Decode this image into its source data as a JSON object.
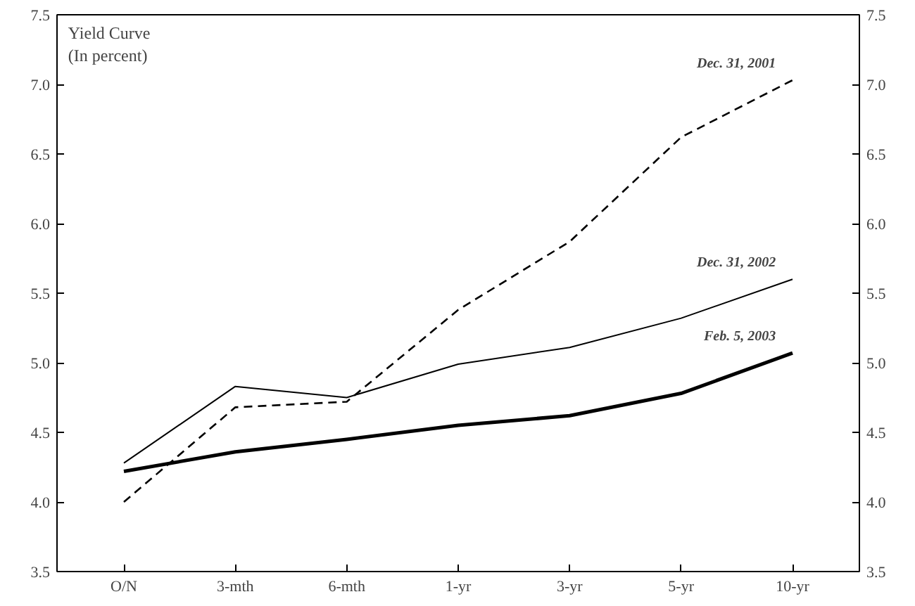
{
  "chart_data": {
    "type": "line",
    "title": "Yield Curve",
    "subtitle": "(In percent)",
    "categories": [
      "O/N",
      "3-mth",
      "6-mth",
      "1-yr",
      "3-yr",
      "5-yr",
      "10-yr"
    ],
    "series": [
      {
        "name": "Dec. 31, 2001",
        "color": "#000000",
        "line_style": "dashed",
        "values": [
          4.0,
          4.68,
          4.72,
          5.38,
          5.87,
          6.62,
          7.03
        ]
      },
      {
        "name": "Dec. 31, 2002",
        "color": "#000000",
        "line_style": "solid",
        "values": [
          4.28,
          4.83,
          4.75,
          4.99,
          5.11,
          5.32,
          5.6
        ]
      },
      {
        "name": "Feb. 5, 2003",
        "color": "#000000",
        "line_style": "solid",
        "values": [
          4.22,
          4.36,
          4.45,
          4.55,
          4.62,
          4.78,
          5.07
        ]
      }
    ],
    "ylim": [
      3.5,
      7.5
    ],
    "yticks": [
      3.5,
      {
        "value": 4,
        "label": "4.0"
      },
      4.5,
      {
        "value": 5,
        "label": "5.0"
      },
      5.5,
      {
        "value": 6,
        "label": "6.0"
      },
      6.5,
      {
        "value": 7,
        "label": "7.0"
      },
      7.5
    ],
    "y2lim": [
      3.5,
      7.5
    ],
    "y2ticks": [
      3.5,
      {
        "value": 4,
        "label": "4.0"
      },
      4.5,
      {
        "value": 5,
        "label": "5.0"
      },
      5.5,
      {
        "value": 6,
        "label": "6.0"
      },
      6.5,
      {
        "value": 7,
        "label": "7.0"
      },
      7.5
    ],
    "grid": false,
    "marker": "none"
  }
}
